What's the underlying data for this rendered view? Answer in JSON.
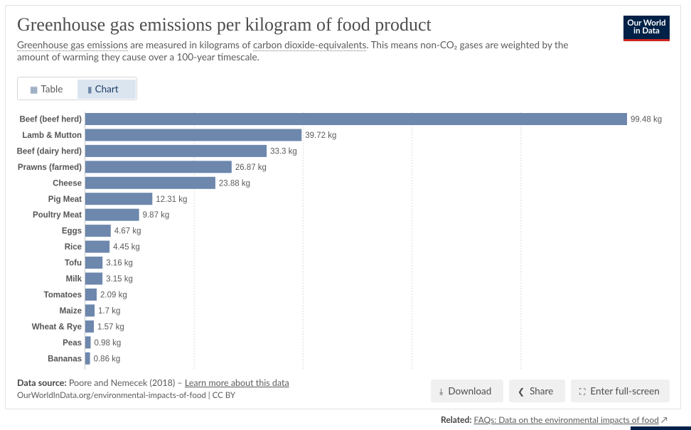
{
  "header": {
    "title": "Greenhouse gas emissions per kilogram of food product",
    "subtitle_link1": "Greenhouse gas emissions",
    "subtitle_mid1": " are measured in kilograms of ",
    "subtitle_link2": "carbon dioxide-equivalents",
    "subtitle_rest": ". This means non-CO₂ gases are weighted by the amount of warming they cause over a 100-year timescale."
  },
  "logo": {
    "line1": "Our World",
    "line2": "in Data",
    "bg": "#002147",
    "accent": "#ce261e"
  },
  "tabs": [
    {
      "label": "Table",
      "icon": "table-icon",
      "active": false
    },
    {
      "label": "Chart",
      "icon": "bar-chart-icon",
      "active": true
    }
  ],
  "chart_data": {
    "type": "bar",
    "orientation": "horizontal",
    "categories": [
      "Beef (beef herd)",
      "Lamb & Mutton",
      "Beef (dairy herd)",
      "Prawns (farmed)",
      "Cheese",
      "Pig Meat",
      "Poultry Meat",
      "Eggs",
      "Rice",
      "Tofu",
      "Milk",
      "Tomatoes",
      "Maize",
      "Wheat & Rye",
      "Peas",
      "Bananas"
    ],
    "values": [
      99.48,
      39.72,
      33.3,
      26.87,
      23.88,
      12.31,
      9.87,
      4.67,
      4.45,
      3.16,
      3.15,
      2.09,
      1.7,
      1.57,
      0.98,
      0.86
    ],
    "data_labels": [
      "99.48 kg",
      "39.72 kg",
      "33.3 kg",
      "26.87 kg",
      "23.88 kg",
      "12.31 kg",
      "9.87 kg",
      "4.67 kg",
      "4.45 kg",
      "3.16 kg",
      "3.15 kg",
      "2.09 kg",
      "1.7 kg",
      "1.57 kg",
      "0.98 kg",
      "0.86 kg"
    ],
    "unit": "kg",
    "xlim": [
      0,
      100
    ],
    "gridlines": [
      0,
      20,
      40,
      60,
      80
    ],
    "grid": true,
    "legend": "none",
    "bar_color": "#6d87ad"
  },
  "footer": {
    "source_label": "Data source:",
    "source_text": " Poore and Nemecek (2018) – ",
    "source_link": "Learn more about this data",
    "url": "OurWorldInData.org/environmental-impacts-of-food | CC BY",
    "download_label": "Download",
    "share_label": "Share",
    "fullscreen_label": "Enter full-screen",
    "related_label": "Related:",
    "related_link": "FAQs: Data on the environmental impacts of food"
  }
}
